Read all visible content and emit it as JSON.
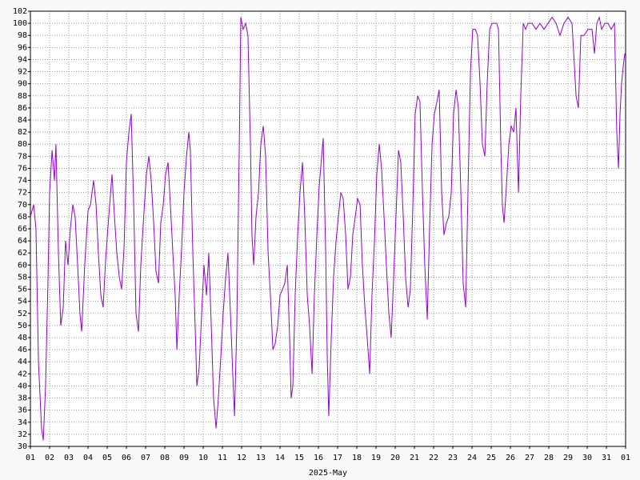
{
  "chart_data": {
    "type": "line",
    "xlabel": "2025-May",
    "grid": true,
    "xlim": [
      0,
      31
    ],
    "ylim": [
      30,
      102
    ],
    "yticks": [
      30,
      32,
      34,
      36,
      38,
      40,
      42,
      44,
      46,
      48,
      50,
      52,
      54,
      56,
      58,
      60,
      62,
      64,
      66,
      68,
      70,
      72,
      74,
      76,
      78,
      80,
      82,
      84,
      86,
      88,
      90,
      92,
      94,
      96,
      98,
      100,
      102
    ],
    "xticks": [
      {
        "value": 0,
        "label": "01"
      },
      {
        "value": 1,
        "label": "02"
      },
      {
        "value": 2,
        "label": "03"
      },
      {
        "value": 3,
        "label": "04"
      },
      {
        "value": 4,
        "label": "05"
      },
      {
        "value": 5,
        "label": "06"
      },
      {
        "value": 6,
        "label": "07"
      },
      {
        "value": 7,
        "label": "08"
      },
      {
        "value": 8,
        "label": "09"
      },
      {
        "value": 9,
        "label": "10"
      },
      {
        "value": 10,
        "label": "11"
      },
      {
        "value": 11,
        "label": "12"
      },
      {
        "value": 12,
        "label": "13"
      },
      {
        "value": 13,
        "label": "14"
      },
      {
        "value": 14,
        "label": "15"
      },
      {
        "value": 15,
        "label": "16"
      },
      {
        "value": 16,
        "label": "17"
      },
      {
        "value": 17,
        "label": "18"
      },
      {
        "value": 18,
        "label": "19"
      },
      {
        "value": 19,
        "label": "20"
      },
      {
        "value": 20,
        "label": "21"
      },
      {
        "value": 21,
        "label": "22"
      },
      {
        "value": 22,
        "label": "23"
      },
      {
        "value": 23,
        "label": "24"
      },
      {
        "value": 24,
        "label": "25"
      },
      {
        "value": 25,
        "label": "26"
      },
      {
        "value": 26,
        "label": "27"
      },
      {
        "value": 27,
        "label": "28"
      },
      {
        "value": 28,
        "label": "29"
      },
      {
        "value": 29,
        "label": "30"
      },
      {
        "value": 30,
        "label": "31"
      },
      {
        "value": 31,
        "label": "01"
      }
    ],
    "x": [
      0,
      0.17,
      0.29,
      0.42,
      0.58,
      0.67,
      0.79,
      0.92,
      1,
      1.13,
      1.25,
      1.33,
      1.46,
      1.58,
      1.71,
      1.83,
      1.96,
      2.08,
      2.21,
      2.33,
      2.46,
      2.58,
      2.67,
      2.83,
      3,
      3.13,
      3.29,
      3.42,
      3.54,
      3.67,
      3.79,
      3.92,
      4.08,
      4.25,
      4.38,
      4.5,
      4.63,
      4.75,
      4.88,
      5,
      5.13,
      5.25,
      5.38,
      5.5,
      5.63,
      5.75,
      5.92,
      6.04,
      6.17,
      6.29,
      6.42,
      6.54,
      6.67,
      6.79,
      6.92,
      7.04,
      7.17,
      7.29,
      7.42,
      7.54,
      7.63,
      7.75,
      7.88,
      8,
      8.13,
      8.25,
      8.33,
      8.46,
      8.58,
      8.67,
      8.79,
      8.92,
      9.04,
      9.17,
      9.29,
      9.42,
      9.54,
      9.67,
      9.79,
      9.92,
      10.04,
      10.17,
      10.29,
      10.42,
      10.54,
      10.63,
      10.75,
      10.88,
      10.96,
      11.08,
      11.21,
      11.33,
      11.46,
      11.54,
      11.63,
      11.75,
      11.88,
      12,
      12.13,
      12.25,
      12.38,
      12.5,
      12.63,
      12.75,
      12.88,
      13,
      13.13,
      13.25,
      13.38,
      13.5,
      13.58,
      13.67,
      13.79,
      13.92,
      14.04,
      14.17,
      14.29,
      14.42,
      14.54,
      14.67,
      14.79,
      14.92,
      15.04,
      15.17,
      15.25,
      15.38,
      15.46,
      15.54,
      15.67,
      15.79,
      15.92,
      16.04,
      16.17,
      16.29,
      16.42,
      16.54,
      16.67,
      16.79,
      16.92,
      17.04,
      17.17,
      17.29,
      17.42,
      17.54,
      17.67,
      17.79,
      17.92,
      18.04,
      18.17,
      18.29,
      18.42,
      18.54,
      18.67,
      18.79,
      18.92,
      19.04,
      19.17,
      19.29,
      19.42,
      19.54,
      19.67,
      19.79,
      19.92,
      20.04,
      20.17,
      20.29,
      20.42,
      20.54,
      20.67,
      20.79,
      20.92,
      21.04,
      21.17,
      21.29,
      21.42,
      21.54,
      21.67,
      21.79,
      21.92,
      22.04,
      22.17,
      22.29,
      22.42,
      22.54,
      22.67,
      22.79,
      22.92,
      23.04,
      23.17,
      23.29,
      23.42,
      23.54,
      23.67,
      23.79,
      23.92,
      24.04,
      24.17,
      24.29,
      24.38,
      24.5,
      24.58,
      24.67,
      24.79,
      24.92,
      25.04,
      25.17,
      25.29,
      25.42,
      25.54,
      25.67,
      25.79,
      25.92,
      26.13,
      26.33,
      26.54,
      26.75,
      26.96,
      27.17,
      27.38,
      27.58,
      27.79,
      28,
      28.21,
      28.42,
      28.54,
      28.67,
      28.83,
      29.04,
      29.25,
      29.38,
      29.5,
      29.63,
      29.75,
      29.92,
      30.08,
      30.25,
      30.42,
      30.54,
      30.63,
      30.71,
      30.79,
      30.88,
      30.96
    ],
    "series": [
      {
        "color": "#9400d3",
        "values": [
          68,
          70,
          66,
          44,
          33,
          31,
          40,
          58,
          72,
          79,
          74,
          80,
          62,
          50,
          53,
          64,
          60,
          66,
          70,
          68,
          60,
          52,
          49,
          60,
          69,
          70,
          74,
          70,
          62,
          55,
          53,
          61,
          68,
          75,
          68,
          62,
          58,
          56,
          63,
          77,
          82,
          85,
          70,
          52,
          49,
          60,
          69,
          75,
          78,
          74,
          67,
          59,
          57,
          67,
          70,
          75,
          77,
          70,
          62,
          55,
          46,
          55,
          63,
          72,
          78,
          82,
          79,
          62,
          50,
          40,
          43,
          52,
          60,
          55,
          62,
          50,
          38,
          33,
          38,
          45,
          52,
          58,
          62,
          52,
          42,
          35,
          50,
          80,
          101,
          99,
          100,
          98,
          80,
          65,
          60,
          68,
          72,
          80,
          83,
          78,
          62,
          55,
          46,
          47,
          50,
          55,
          56,
          57,
          60,
          48,
          38,
          40,
          55,
          65,
          72,
          77,
          68,
          55,
          50,
          42,
          55,
          65,
          73,
          78,
          81,
          62,
          45,
          35,
          48,
          58,
          64,
          68,
          72,
          71,
          65,
          56,
          58,
          65,
          68,
          71,
          70,
          60,
          53,
          48,
          42,
          55,
          64,
          75,
          80,
          76,
          68,
          60,
          52,
          48,
          58,
          68,
          79,
          77,
          68,
          58,
          53,
          56,
          70,
          85,
          88,
          87,
          72,
          60,
          51,
          66,
          80,
          85,
          87,
          89,
          72,
          65,
          67,
          68,
          72,
          85,
          89,
          86,
          72,
          57,
          53,
          72,
          92,
          99,
          99,
          98,
          90,
          80,
          78,
          90,
          99,
          100,
          100,
          100,
          99,
          80,
          70,
          67,
          73,
          80,
          83,
          82,
          86,
          72,
          88,
          100,
          99,
          100,
          100,
          99,
          100,
          99,
          100,
          101,
          100,
          98,
          100,
          101,
          100,
          88,
          86,
          98,
          98,
          99,
          99,
          95,
          100,
          101,
          99,
          100,
          100,
          99,
          100,
          82,
          76,
          85,
          90,
          93,
          95
        ]
      }
    ]
  }
}
